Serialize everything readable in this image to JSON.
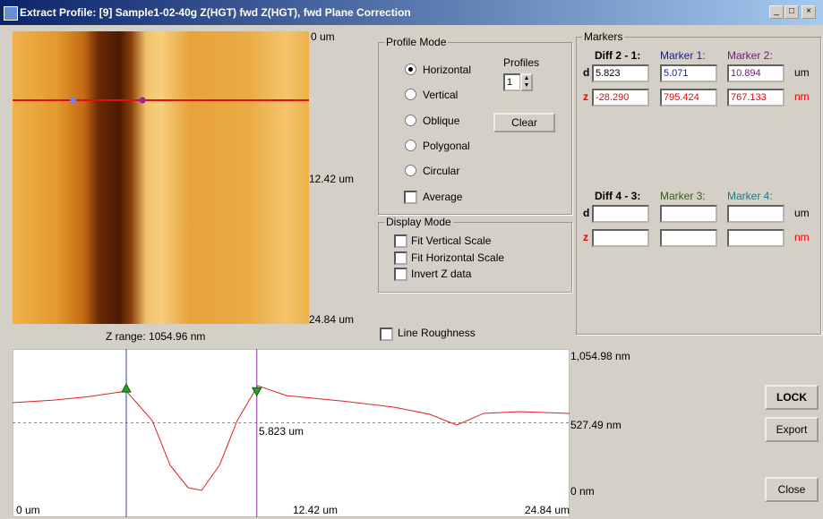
{
  "window": {
    "title": "Extract Profile: [9] Sample1-02-40g Z(HGT) fwd  Z(HGT), fwd Plane Correction"
  },
  "image": {
    "top_label": "0 um",
    "mid_label": "12.42 um",
    "bottom_label": "24.84 um",
    "z_range": "Z range: 1054.96 nm"
  },
  "profile_mode": {
    "title": "Profile Mode",
    "options": [
      "Horizontal",
      "Vertical",
      "Oblique",
      "Polygonal",
      "Circular"
    ],
    "selected": 0,
    "average": "Average",
    "profiles_label": "Profiles",
    "profiles_value": "1",
    "clear": "Clear"
  },
  "display_mode": {
    "title": "Display Mode",
    "options": [
      "Fit Vertical Scale",
      "Fit Horizontal Scale",
      "Invert Z data"
    ]
  },
  "line_roughness": "Line Roughness",
  "markers": {
    "title": "Markers",
    "row_labels": {
      "d": "d",
      "z": "z",
      "d_unit": "um",
      "z_unit": "nm"
    },
    "groups": [
      {
        "headers": [
          "Diff 2 - 1:",
          "Marker 1:",
          "Marker 2:"
        ],
        "d": [
          "5.823",
          "5.071",
          "10.894"
        ],
        "z": [
          "-28.290",
          "795.424",
          "767.133"
        ]
      },
      {
        "headers": [
          "Diff 4 - 3:",
          "Marker 3:",
          "Marker 4:"
        ]
      }
    ]
  },
  "profile": {
    "xlim": [
      0,
      24.84
    ],
    "ylim": [
      0,
      1054.98
    ],
    "x": [
      0,
      1.84,
      3.43,
      5.07,
      6.23,
      7.03,
      7.83,
      8.43,
      9.23,
      10.02,
      10.94,
      12.22,
      14.62,
      17.01,
      18.61,
      19.81,
      21.01,
      22.6,
      24.84
    ],
    "y": [
      685,
      705,
      733,
      775,
      545,
      196,
      21,
      0,
      196,
      545,
      817,
      740,
      699,
      650,
      594,
      510,
      601,
      615,
      601
    ],
    "x_labels": [
      "0 um",
      "12.42 um",
      "24.84 um"
    ],
    "y_labels": [
      "1,054.98 nm",
      "527.49 nm",
      "0 nm"
    ],
    "diff_label": "5.823 um"
  },
  "buttons": [
    "LOCK",
    "Export",
    "Close"
  ]
}
